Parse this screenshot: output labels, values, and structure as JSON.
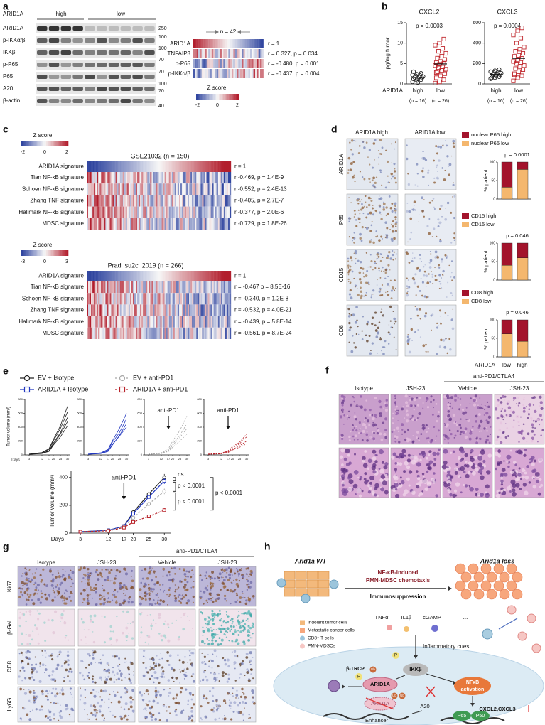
{
  "a": {
    "label": "a",
    "blot_gene": "ARID1A",
    "blot_groups": [
      "high",
      "low"
    ],
    "blot_rows": [
      "ARID1A",
      "p-IKKα/β",
      "IKKβ",
      "p-P65",
      "P65",
      "A20",
      "β-actin"
    ],
    "blot_markers": [
      "250",
      "100",
      "100",
      "70",
      "70",
      "100",
      "70",
      "40"
    ],
    "heatmap_n": "n = 42",
    "heatmap_rows": [
      "ARID1A",
      "TNFAIP3",
      "p-P65",
      "p-IKKα/β"
    ],
    "heatmap_stats": [
      "r = 1",
      "r = 0.327, p = 0.034",
      "r = -0.480, p = 0.001",
      "r = -0.437, p = 0.004"
    ],
    "zscore_title": "Z score",
    "zscore_ticks": [
      "-2",
      "0",
      "2"
    ]
  },
  "b": {
    "label": "b",
    "group_axis_label": "ARID1A",
    "charts": [
      {
        "type": "scatter",
        "title": "CXCL2",
        "p": "p = 0.0003",
        "ylabel": "pg/mg tumor",
        "ylim": [
          0,
          15
        ],
        "yticks": [
          0,
          5,
          10,
          15
        ],
        "categories": [
          "high",
          "low"
        ],
        "n_labels": [
          "(n = 16)",
          "(n = 26)"
        ],
        "series": [
          {
            "name": "high",
            "color": "#222222",
            "values": [
              0.5,
              0.8,
              1.0,
              1.2,
              1.3,
              1.5,
              1.6,
              1.7,
              1.8,
              2.0,
              2.1,
              2.2,
              2.4,
              2.6,
              3.0,
              0.3
            ]
          },
          {
            "name": "low",
            "color": "#c0282e",
            "values": [
              0.2,
              0.5,
              1,
              1.5,
              2,
              2.5,
              3,
              3.3,
              3.6,
              4,
              4.2,
              4.5,
              4.8,
              5,
              5.2,
              5.5,
              6,
              6.3,
              6.8,
              7.5,
              8,
              8.7,
              9.5,
              10,
              11,
              2.8
            ]
          }
        ]
      },
      {
        "type": "scatter",
        "title": "CXCL3",
        "p": "p = 0.0004",
        "ylim": [
          0,
          600
        ],
        "yticks": [
          0,
          200,
          400,
          600
        ],
        "categories": [
          "high",
          "low"
        ],
        "n_labels": [
          "(n = 16)",
          "(n = 26)"
        ],
        "series": [
          {
            "name": "high",
            "color": "#222222",
            "values": [
              50,
              60,
              70,
              80,
              85,
              90,
              95,
              100,
              105,
              110,
              115,
              120,
              130,
              140,
              60,
              75
            ]
          },
          {
            "name": "low",
            "color": "#c0282e",
            "values": [
              30,
              60,
              80,
              100,
              120,
              140,
              150,
              170,
              180,
              200,
              210,
              220,
              230,
              250,
              270,
              280,
              300,
              320,
              340,
              360,
              400,
              450,
              480,
              520,
              550,
              90
            ]
          }
        ]
      }
    ]
  },
  "c": {
    "label": "c",
    "heatmaps": [
      {
        "title": "GSE21032 (n = 150)",
        "zscore_title": "Z score",
        "zscore_ticks": [
          "-2",
          "0",
          "2"
        ],
        "rows": [
          "ARID1A signature",
          "Tian NF-κB signature",
          "Schoen NF-κB signature",
          "Zhang TNF signature",
          "Hallmark NF-κB signature",
          "MDSC signature"
        ],
        "stats": [
          "r = 1",
          "r  -0.469, p = 1.4E-9",
          "r  -0.552, p = 2.4E-13",
          "r  -0.405, p = 2.7E-7",
          "r  -0.377, p = 2.0E-6",
          "r  -0.729, p = 1.8E-26"
        ]
      },
      {
        "title": "Prad_su2c_2019 (n = 266)",
        "zscore_title": "Z score",
        "zscore_ticks": [
          "-3",
          "0",
          "3"
        ],
        "rows": [
          "ARID1A signature",
          "Tian NF-κB signature",
          "Schoen NF-κB signature",
          "Zhang TNF signature",
          "Hallmark NF-κB signature",
          "MDSC signature"
        ],
        "stats": [
          "r = 1",
          "r = -0.467 p = 8.5E-16",
          "r = -0.340, p = 1.2E-8",
          "r = -0.532, p = 4.0E-21",
          "r = -0.439, p = 5.8E-14",
          "r = -0.561, p = 8.7E-24"
        ]
      }
    ]
  },
  "d": {
    "label": "d",
    "columns": [
      "ARID1A high",
      "ARID1A low"
    ],
    "rows": [
      "ARID1A",
      "P65",
      "CD15",
      "CD8"
    ],
    "group_axis_label": "ARID1A",
    "categories": [
      "low",
      "high"
    ],
    "charts": [
      {
        "type": "bar",
        "p": "p = 0.0001",
        "ylabel": "% patient",
        "ylim": [
          0,
          100
        ],
        "yticks": [
          0,
          50,
          100
        ],
        "series": [
          {
            "name": "nuclear P65 high",
            "color": "#a3132c",
            "values": [
              68,
              20
            ]
          },
          {
            "name": "nuclear P65 low",
            "color": "#f4b76e",
            "values": [
              32,
              80
            ]
          }
        ]
      },
      {
        "type": "bar",
        "p": "p = 0.046",
        "ylabel": "% patient",
        "ylim": [
          0,
          100
        ],
        "yticks": [
          0,
          50,
          100
        ],
        "series": [
          {
            "name": "CD15 high",
            "color": "#a3132c",
            "values": [
              60,
              40
            ]
          },
          {
            "name": "CD15 low",
            "color": "#f4b76e",
            "values": [
              40,
              60
            ]
          }
        ]
      },
      {
        "type": "bar",
        "p": "p = 0.046",
        "ylabel": "% patient",
        "ylim": [
          0,
          100
        ],
        "yticks": [
          0,
          50,
          100
        ],
        "series": [
          {
            "name": "CD8 high",
            "color": "#a3132c",
            "values": [
              38,
              58
            ]
          },
          {
            "name": "CD8 low",
            "color": "#f4b76e",
            "values": [
              62,
              42
            ]
          }
        ]
      }
    ]
  },
  "e": {
    "label": "e",
    "small": {
      "ylabel": "Tumor volume (mm³)",
      "xlabel": "Days",
      "annotation": "anti-PD1",
      "xlim": [
        0,
        32
      ],
      "xticks": [
        3,
        12,
        17,
        20,
        25,
        30
      ],
      "x": [
        3,
        12,
        17,
        20,
        25,
        30
      ],
      "ylim": [
        0,
        800
      ],
      "yticks": [
        0,
        200,
        400,
        600,
        800
      ],
      "groups": [
        {
          "arrow": false,
          "mice": [
            [
              10,
              30,
              80,
              200,
              380,
              620
            ],
            [
              10,
              25,
              60,
              170,
              320,
              540
            ],
            [
              8,
              20,
              55,
              150,
              300,
              480
            ],
            [
              12,
              35,
              90,
              220,
              420,
              700
            ],
            [
              10,
              22,
              50,
              140,
              260,
              420
            ]
          ]
        },
        {
          "arrow": false,
          "mice": [
            [
              10,
              25,
              70,
              180,
              320,
              520
            ],
            [
              8,
              20,
              50,
              140,
              280,
              450
            ],
            [
              12,
              30,
              80,
              200,
              380,
              600
            ],
            [
              10,
              22,
              55,
              150,
              270,
              400
            ]
          ]
        },
        {
          "arrow": true,
          "mice": [
            [
              10,
              30,
              90,
              200,
              350,
              560
            ],
            [
              8,
              20,
              60,
              140,
              250,
              380
            ],
            [
              12,
              25,
              70,
              160,
              280,
              450
            ],
            [
              10,
              20,
              50,
              110,
              200,
              300
            ]
          ]
        },
        {
          "arrow": true,
          "mice": [
            [
              10,
              20,
              50,
              100,
              160,
              260
            ],
            [
              8,
              15,
              40,
              80,
              130,
              200
            ],
            [
              12,
              25,
              60,
              120,
              180,
              300
            ],
            [
              10,
              18,
              35,
              70,
              110,
              160
            ]
          ]
        }
      ]
    },
    "main": {
      "type": "line",
      "ylabel": "Tumor volume (mm³)",
      "xlabel": "Days",
      "annotation": "anti-PD1",
      "x": [
        3,
        12,
        17,
        20,
        25,
        30
      ],
      "xlim": [
        0,
        32
      ],
      "xticks": [
        3,
        12,
        17,
        20,
        25,
        30
      ],
      "ylim": [
        0,
        450
      ],
      "yticks": [
        0,
        200,
        400
      ],
      "series": [
        {
          "name": "EV + Isotype",
          "color": "#222222",
          "dashed": false,
          "marker": "circle",
          "values": [
            10,
            20,
            50,
            150,
            280,
            400
          ],
          "errors": [
            2,
            3,
            6,
            12,
            20,
            25
          ]
        },
        {
          "name": "ARID1A + Isotype",
          "color": "#2238c0",
          "dashed": false,
          "marker": "square",
          "values": [
            10,
            20,
            50,
            140,
            260,
            375
          ],
          "errors": [
            2,
            3,
            6,
            12,
            18,
            22
          ]
        },
        {
          "name": "EV + anti-PD1",
          "color": "#a8a8a8",
          "dashed": true,
          "marker": "circle",
          "values": [
            10,
            18,
            45,
            110,
            210,
            300
          ],
          "errors": [
            2,
            3,
            5,
            10,
            16,
            20
          ]
        },
        {
          "name": "ARID1A + anti-PD1",
          "color": "#b8232a",
          "dashed": true,
          "marker": "square",
          "values": [
            10,
            16,
            40,
            80,
            120,
            165
          ],
          "errors": [
            2,
            2,
            4,
            8,
            12,
            15
          ]
        }
      ],
      "stats": [
        "ns",
        "p < 0.0001",
        "p < 0.0001",
        "p < 0.0001"
      ]
    }
  },
  "f": {
    "label": "f",
    "columns": [
      "Isotype",
      "JSH-23",
      "Vehicle",
      "JSH-23"
    ],
    "group_label": "anti-PD1/CTLA4"
  },
  "g": {
    "label": "g",
    "columns": [
      "Isotype",
      "JSH-23",
      "Vehicle",
      "JSH-23"
    ],
    "group_label": "anti-PD1/CTLA4",
    "rows": [
      "Ki67",
      "β-Gal",
      "CD8",
      "Ly6G"
    ]
  },
  "h": {
    "label": "h",
    "wt": "Arid1a WT",
    "loss": "Arid1a loss",
    "arrow_top": "NF-κB-induced",
    "arrow_mid": "PMN-MDSC chemotaxis",
    "arrow_bottom": "Immunosuppression",
    "cues": [
      "TNFα",
      "IL1β",
      "cGAMP",
      "..."
    ],
    "cues_label": "Inflammatory cues",
    "legend": [
      "Indolent tumor cells",
      "Metastatic cancer cells",
      "CD8⁺ T cells",
      "PMN-MDSCs"
    ],
    "ikk": "IKKβ",
    "btrcp": "β-TRCP",
    "phospho": "P",
    "ub": "Ub",
    "arid1a": "ARID1A",
    "nfkb": [
      "NFκB",
      "activation"
    ],
    "enhancer": "Enhancer",
    "a20": "A20",
    "cxcl": "CXCL2,CXCL3",
    "p65": "P65",
    "p50": "P50"
  }
}
